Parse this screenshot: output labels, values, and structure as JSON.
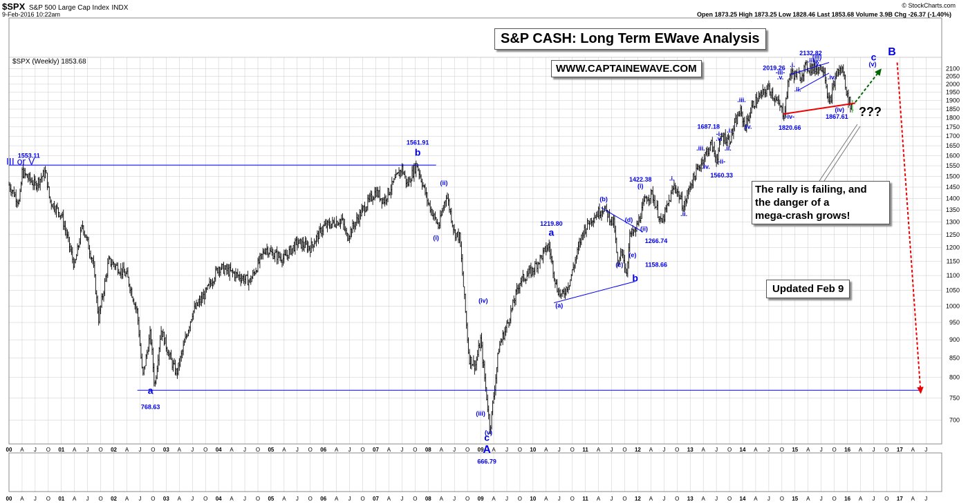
{
  "header": {
    "symbol": "$SPX",
    "name": "S&P 500 Large Cap Index",
    "exchange": "INDX",
    "datetime": "9-Feb-2016 10:22am",
    "credit": "© StockCharts.com",
    "quote": "Open 1873.25  High 1873.25  Low 1828.46  Last 1853.68  Volume 3.9B  Chg -26.37 (-1.40%)",
    "legend": "$SPX (Weekly) 1853.68"
  },
  "boxes": {
    "title": "S&P CASH: Long Term EWave Analysis",
    "website": "WWW.CAPTAINEWAVE.COM",
    "note_lines": [
      "The rally is failing, and",
      "the danger of a",
      "mega-crash grows!"
    ],
    "updated": "Updated Feb 9",
    "question": "???"
  },
  "colors": {
    "price": "#000000",
    "wave": "#0000ee",
    "trendline": "#ee0000",
    "forecast_up": "#006600",
    "forecast_down": "#ee0000",
    "grid": "#c8c8c8"
  },
  "chart_data": {
    "type": "ohlc",
    "frequency": "weekly",
    "y_scale": "log",
    "ylim": [
      650,
      2175
    ],
    "y_ticks": [
      700,
      750,
      800,
      850,
      900,
      950,
      1000,
      1050,
      1100,
      1150,
      1200,
      1250,
      1300,
      1350,
      1400,
      1450,
      1500,
      1550,
      1600,
      1650,
      1700,
      1750,
      1800,
      1850,
      1900,
      1950,
      2000,
      2050,
      2100
    ],
    "x_range": [
      2000.0,
      2017.8
    ],
    "x_ticks": [
      {
        "t": 2000.0,
        "label": "00"
      },
      {
        "t": 2000.25,
        "label": "A"
      },
      {
        "t": 2000.5,
        "label": "J"
      },
      {
        "t": 2000.75,
        "label": "O"
      },
      {
        "t": 2001.0,
        "label": "01"
      },
      {
        "t": 2001.25,
        "label": "A"
      },
      {
        "t": 2001.5,
        "label": "J"
      },
      {
        "t": 2001.75,
        "label": "O"
      },
      {
        "t": 2002.0,
        "label": "02"
      },
      {
        "t": 2002.25,
        "label": "A"
      },
      {
        "t": 2002.5,
        "label": "J"
      },
      {
        "t": 2002.75,
        "label": "O"
      },
      {
        "t": 2003.0,
        "label": "03"
      },
      {
        "t": 2003.25,
        "label": "A"
      },
      {
        "t": 2003.5,
        "label": "J"
      },
      {
        "t": 2003.75,
        "label": "O"
      },
      {
        "t": 2004.0,
        "label": "04"
      },
      {
        "t": 2004.25,
        "label": "A"
      },
      {
        "t": 2004.5,
        "label": "J"
      },
      {
        "t": 2004.75,
        "label": "O"
      },
      {
        "t": 2005.0,
        "label": "05"
      },
      {
        "t": 2005.25,
        "label": "A"
      },
      {
        "t": 2005.5,
        "label": "J"
      },
      {
        "t": 2005.75,
        "label": "O"
      },
      {
        "t": 2006.0,
        "label": "06"
      },
      {
        "t": 2006.25,
        "label": "A"
      },
      {
        "t": 2006.5,
        "label": "J"
      },
      {
        "t": 2006.75,
        "label": "O"
      },
      {
        "t": 2007.0,
        "label": "07"
      },
      {
        "t": 2007.25,
        "label": "A"
      },
      {
        "t": 2007.5,
        "label": "J"
      },
      {
        "t": 2007.75,
        "label": "O"
      },
      {
        "t": 2008.0,
        "label": "08"
      },
      {
        "t": 2008.25,
        "label": "A"
      },
      {
        "t": 2008.5,
        "label": "J"
      },
      {
        "t": 2008.75,
        "label": "O"
      },
      {
        "t": 2009.0,
        "label": "09"
      },
      {
        "t": 2009.25,
        "label": "A"
      },
      {
        "t": 2009.5,
        "label": "J"
      },
      {
        "t": 2009.75,
        "label": "O"
      },
      {
        "t": 2010.0,
        "label": "10"
      },
      {
        "t": 2010.25,
        "label": "A"
      },
      {
        "t": 2010.5,
        "label": "J"
      },
      {
        "t": 2010.75,
        "label": "O"
      },
      {
        "t": 2011.0,
        "label": "11"
      },
      {
        "t": 2011.25,
        "label": "A"
      },
      {
        "t": 2011.5,
        "label": "J"
      },
      {
        "t": 2011.75,
        "label": "O"
      },
      {
        "t": 2012.0,
        "label": "12"
      },
      {
        "t": 2012.25,
        "label": "A"
      },
      {
        "t": 2012.5,
        "label": "J"
      },
      {
        "t": 2012.75,
        "label": "O"
      },
      {
        "t": 2013.0,
        "label": "13"
      },
      {
        "t": 2013.25,
        "label": "A"
      },
      {
        "t": 2013.5,
        "label": "J"
      },
      {
        "t": 2013.75,
        "label": "O"
      },
      {
        "t": 2014.0,
        "label": "14"
      },
      {
        "t": 2014.25,
        "label": "A"
      },
      {
        "t": 2014.5,
        "label": "J"
      },
      {
        "t": 2014.75,
        "label": "O"
      },
      {
        "t": 2015.0,
        "label": "15"
      },
      {
        "t": 2015.25,
        "label": "A"
      },
      {
        "t": 2015.5,
        "label": "J"
      },
      {
        "t": 2015.75,
        "label": "O"
      },
      {
        "t": 2016.0,
        "label": "16"
      },
      {
        "t": 2016.25,
        "label": "A"
      },
      {
        "t": 2016.5,
        "label": "J"
      },
      {
        "t": 2016.75,
        "label": "O"
      },
      {
        "t": 2017.0,
        "label": "17"
      },
      {
        "t": 2017.25,
        "label": "A"
      },
      {
        "t": 2017.5,
        "label": "J"
      }
    ],
    "path": [
      [
        2000.0,
        1460
      ],
      [
        2000.2,
        1380
      ],
      [
        2000.25,
        1520
      ],
      [
        2000.5,
        1460
      ],
      [
        2000.7,
        1520
      ],
      [
        2000.78,
        1390
      ],
      [
        2001.0,
        1330
      ],
      [
        2001.1,
        1250
      ],
      [
        2001.25,
        1130
      ],
      [
        2001.4,
        1290
      ],
      [
        2001.6,
        1150
      ],
      [
        2001.71,
        960
      ],
      [
        2001.9,
        1150
      ],
      [
        2002.0,
        1140
      ],
      [
        2002.25,
        1100
      ],
      [
        2002.45,
        980
      ],
      [
        2002.55,
        800
      ],
      [
        2002.7,
        920
      ],
      [
        2002.78,
        776
      ],
      [
        2002.9,
        930
      ],
      [
        2003.1,
        840
      ],
      [
        2003.2,
        810
      ],
      [
        2003.5,
        980
      ],
      [
        2003.75,
        1040
      ],
      [
        2004.0,
        1130
      ],
      [
        2004.25,
        1110
      ],
      [
        2004.6,
        1080
      ],
      [
        2004.9,
        1200
      ],
      [
        2005.0,
        1180
      ],
      [
        2005.25,
        1160
      ],
      [
        2005.5,
        1220
      ],
      [
        2005.75,
        1200
      ],
      [
        2006.0,
        1280
      ],
      [
        2006.35,
        1310
      ],
      [
        2006.45,
        1240
      ],
      [
        2006.75,
        1350
      ],
      [
        2007.0,
        1430
      ],
      [
        2007.15,
        1390
      ],
      [
        2007.5,
        1540
      ],
      [
        2007.6,
        1460
      ],
      [
        2007.78,
        1560
      ],
      [
        2007.9,
        1460
      ],
      [
        2008.0,
        1380
      ],
      [
        2008.2,
        1280
      ],
      [
        2008.35,
        1420
      ],
      [
        2008.5,
        1260
      ],
      [
        2008.6,
        1240
      ],
      [
        2008.78,
        850
      ],
      [
        2008.9,
        830
      ],
      [
        2009.0,
        900
      ],
      [
        2009.18,
        680
      ],
      [
        2009.35,
        880
      ],
      [
        2009.5,
        940
      ],
      [
        2009.75,
        1080
      ],
      [
        2010.0,
        1120
      ],
      [
        2010.3,
        1210
      ],
      [
        2010.45,
        1060
      ],
      [
        2010.55,
        1030
      ],
      [
        2010.7,
        1080
      ],
      [
        2010.95,
        1260
      ],
      [
        2011.1,
        1310
      ],
      [
        2011.35,
        1360
      ],
      [
        2011.55,
        1290
      ],
      [
        2011.62,
        1120
      ],
      [
        2011.7,
        1200
      ],
      [
        2011.78,
        1100
      ],
      [
        2011.85,
        1250
      ],
      [
        2011.95,
        1260
      ],
      [
        2012.15,
        1400
      ],
      [
        2012.27,
        1420
      ],
      [
        2012.4,
        1330
      ],
      [
        2012.45,
        1290
      ],
      [
        2012.7,
        1460
      ],
      [
        2012.88,
        1360
      ],
      [
        2013.0,
        1460
      ],
      [
        2013.2,
        1560
      ],
      [
        2013.4,
        1660
      ],
      [
        2013.5,
        1580
      ],
      [
        2013.6,
        1700
      ],
      [
        2013.75,
        1680
      ],
      [
        2013.95,
        1840
      ],
      [
        2014.05,
        1750
      ],
      [
        2014.2,
        1880
      ],
      [
        2014.5,
        1980
      ],
      [
        2014.79,
        1820
      ],
      [
        2014.9,
        2070
      ],
      [
        2015.1,
        2050
      ],
      [
        2015.2,
        2110
      ],
      [
        2015.4,
        2100
      ],
      [
        2015.55,
        2110
      ],
      [
        2015.65,
        1870
      ],
      [
        2015.8,
        2080
      ],
      [
        2015.92,
        2090
      ],
      [
        2016.0,
        1920
      ],
      [
        2016.1,
        1850
      ]
    ],
    "range_lines": [
      {
        "name": "top-line",
        "t1": 2000.0,
        "p1": 1553.11,
        "t2": 2008.15,
        "p2": 1553.11
      },
      {
        "name": "bottom-line",
        "t1": 2002.45,
        "p1": 768.63,
        "t2": 2017.4,
        "p2": 768.63
      },
      {
        "name": "a-b-line",
        "t1": 2010.4,
        "p1": 1010,
        "t2": 2011.95,
        "p2": 1080
      },
      {
        "name": "d-line",
        "t1": 2011.3,
        "p1": 1360,
        "t2": 2012.1,
        "p2": 1260
      },
      {
        "name": "iii-line",
        "t1": 2014.9,
        "p1": 2060,
        "t2": 2015.65,
        "p2": 2140
      },
      {
        "name": "iv-line",
        "t1": 2015.05,
        "p1": 1960,
        "t2": 2015.65,
        "p2": 2070
      }
    ],
    "support": {
      "t1": 2014.78,
      "p1": 1822,
      "t2": 2016.15,
      "p2": 1885
    },
    "forecast_up": {
      "t1": 2016.15,
      "p1": 1890,
      "t2": 2016.65,
      "p2": 2100
    },
    "forecast_down": {
      "t1": 2016.95,
      "p1": 2140,
      "t2": 2017.4,
      "p2": 760
    },
    "labels": [
      {
        "t": 2000.38,
        "p": 1590,
        "text": "1553.11",
        "size": 9
      },
      {
        "t": 2000.22,
        "p": 1555,
        "text": "III or V",
        "size": 14,
        "weight": "normal"
      },
      {
        "t": 2007.8,
        "p": 1655,
        "text": "1561.91",
        "size": 9
      },
      {
        "t": 2007.8,
        "p": 1600,
        "text": "b",
        "size": 14
      },
      {
        "t": 2002.7,
        "p": 760,
        "text": "a",
        "size": 14
      },
      {
        "t": 2002.7,
        "p": 725,
        "text": "768.63",
        "size": 9
      },
      {
        "t": 2009.12,
        "p": 656,
        "text": "c",
        "size": 14
      },
      {
        "t": 2009.12,
        "p": 632,
        "text": "A",
        "size": 16
      },
      {
        "t": 2009.12,
        "p": 611,
        "text": "666.79",
        "size": 9
      },
      {
        "t": 2010.35,
        "p": 1285,
        "text": "1219.80",
        "size": 9
      },
      {
        "t": 2010.35,
        "p": 1245,
        "text": "a",
        "size": 14
      },
      {
        "t": 2012.05,
        "p": 1475,
        "text": "1422.38",
        "size": 9
      },
      {
        "t": 2013.35,
        "p": 1740,
        "text": "1687.18",
        "size": 9
      },
      {
        "t": 2013.6,
        "p": 1495,
        "text": "1560.33",
        "size": 9
      },
      {
        "t": 2015.3,
        "p": 2190,
        "text": "2132.82",
        "size": 9
      },
      {
        "t": 2014.6,
        "p": 2090,
        "text": "2019.26",
        "size": 9
      },
      {
        "t": 2014.9,
        "p": 1735,
        "text": "1820.66",
        "size": 9
      },
      {
        "t": 2015.8,
        "p": 1795,
        "text": "1867.61",
        "size": 9
      },
      {
        "t": 2016.5,
        "p": 2155,
        "text": "c",
        "size": 14
      },
      {
        "t": 2016.85,
        "p": 2190,
        "text": "B",
        "size": 16
      },
      {
        "t": 2016.48,
        "p": 2115,
        "text": "(v)",
        "size": 9
      },
      {
        "t": 2008.3,
        "p": 1460,
        "text": "(ii)",
        "size": 9
      },
      {
        "t": 2008.15,
        "p": 1230,
        "text": "(i)",
        "size": 9
      },
      {
        "t": 2009.0,
        "p": 710,
        "text": "(iii)",
        "size": 9
      },
      {
        "t": 2009.05,
        "p": 1010,
        "text": "(iv)",
        "size": 9
      },
      {
        "t": 2009.15,
        "p": 669,
        "text": "(v)",
        "size": 9
      },
      {
        "t": 2010.5,
        "p": 995,
        "text": "(a)",
        "size": 9
      },
      {
        "t": 2011.35,
        "p": 1388,
        "text": "(b)",
        "size": 9
      },
      {
        "t": 2011.65,
        "p": 1130,
        "text": "(c)",
        "size": 9
      },
      {
        "t": 2011.83,
        "p": 1300,
        "text": "(d)",
        "size": 9
      },
      {
        "t": 2011.9,
        "p": 1165,
        "text": "(e)",
        "size": 9
      },
      {
        "t": 2011.95,
        "p": 1080,
        "text": "b",
        "size": 14
      },
      {
        "t": 2012.35,
        "p": 1130,
        "text": "1158.66",
        "size": 9
      },
      {
        "t": 2012.05,
        "p": 1446,
        "text": "(i)",
        "size": 9
      },
      {
        "t": 2012.12,
        "p": 1265,
        "text": "(ii)",
        "size": 9
      },
      {
        "t": 2012.35,
        "p": 1217,
        "text": "1266.74",
        "size": 9
      },
      {
        "t": 2012.65,
        "p": 1480,
        "text": ".i.",
        "size": 9
      },
      {
        "t": 2012.88,
        "p": 1325,
        "text": ".ii.",
        "size": 9
      },
      {
        "t": 2013.2,
        "p": 1625,
        "text": ".iii.",
        "size": 9
      },
      {
        "t": 2013.3,
        "p": 1535,
        "text": ".iv.",
        "size": 9
      },
      {
        "t": 2013.55,
        "p": 1700,
        "text": "-i-",
        "size": 9
      },
      {
        "t": 2013.55,
        "p": 1675,
        "text": ".v.",
        "size": 9
      },
      {
        "t": 2013.6,
        "p": 1560,
        "text": "-ii-",
        "size": 9
      },
      {
        "t": 2013.75,
        "p": 1720,
        "text": ".i.",
        "size": 9
      },
      {
        "t": 2013.72,
        "p": 1625,
        "text": ".ii.",
        "size": 9
      },
      {
        "t": 2013.98,
        "p": 1890,
        "text": ".iii.",
        "size": 9
      },
      {
        "t": 2014.1,
        "p": 1740,
        "text": ".iv.",
        "size": 9
      },
      {
        "t": 2014.72,
        "p": 2060,
        "text": "-iii-",
        "size": 9
      },
      {
        "t": 2014.72,
        "p": 2030,
        "text": ".v.",
        "size": 9
      },
      {
        "t": 2014.95,
        "p": 2110,
        "text": ".i.",
        "size": 9
      },
      {
        "t": 2015.05,
        "p": 1955,
        "text": ".ii.",
        "size": 9
      },
      {
        "t": 2015.32,
        "p": 2140,
        "text": ".iii.",
        "size": 9
      },
      {
        "t": 2015.7,
        "p": 2030,
        "text": ".iv.",
        "size": 9
      },
      {
        "t": 2015.42,
        "p": 2165,
        "text": "(iii)",
        "size": 9
      },
      {
        "t": 2015.42,
        "p": 2140,
        "text": "-v-",
        "size": 9
      },
      {
        "t": 2015.42,
        "p": 2120,
        "text": ".v.",
        "size": 9
      },
      {
        "t": 2014.9,
        "p": 1795,
        "text": "-iv-",
        "size": 9
      },
      {
        "t": 2015.85,
        "p": 1835,
        "text": "(iv)",
        "size": 9
      }
    ]
  }
}
